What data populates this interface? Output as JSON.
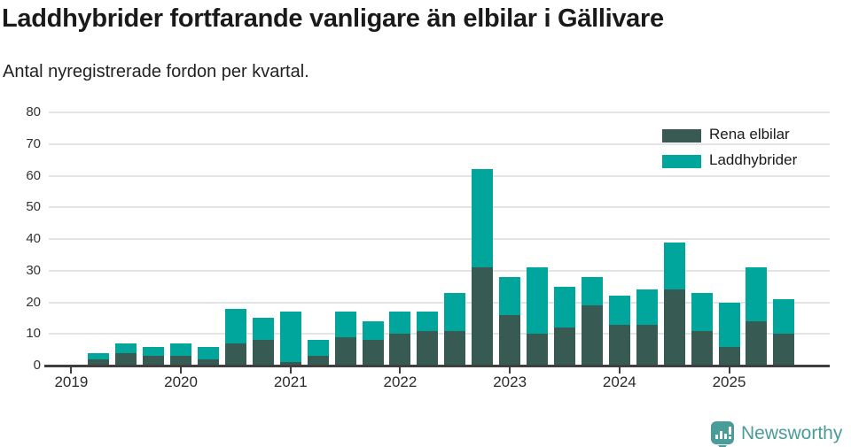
{
  "title": "Laddhybrider fortfarande vanligare än elbilar i Gällivare",
  "subtitle": "Antal nyregistrerade fordon per kvartal.",
  "footer": {
    "brand": "Newsworthy",
    "icon": "bar-chart-speech-bubble-icon"
  },
  "colors": {
    "elbilar": "#375b53",
    "laddhybrider": "#00a59c",
    "brand": "#4a9c99",
    "grid": "#e4e4e4",
    "axis": "#3f3f3f"
  },
  "chart_data": {
    "type": "bar",
    "stacked": true,
    "title": "Laddhybrider fortfarande vanligare än elbilar i Gällivare",
    "subtitle": "Antal nyregistrerade fordon per kvartal.",
    "grid": "horizontal",
    "legend_position": "top-right",
    "ylim": [
      0,
      80
    ],
    "yticks": [
      0,
      10,
      20,
      30,
      40,
      50,
      60,
      70,
      80
    ],
    "x_year_labels": [
      "2019",
      "2020",
      "2021",
      "2022",
      "2023",
      "2024",
      "2025"
    ],
    "categories": [
      "2019 K2",
      "2019 K3",
      "2019 K4",
      "2020 K1",
      "2020 K2",
      "2020 K3",
      "2020 K4",
      "2021 K1",
      "2021 K2",
      "2021 K3",
      "2021 K4",
      "2022 K1",
      "2022 K2",
      "2022 K3",
      "2022 K4",
      "2023 K1",
      "2023 K2",
      "2023 K3",
      "2023 K4",
      "2024 K1",
      "2024 K2",
      "2024 K3",
      "2024 K4",
      "2025 K1",
      "2025 K2",
      "2025 K3"
    ],
    "series": [
      {
        "name": "Rena elbilar",
        "color": "#375b53",
        "values": [
          2,
          4,
          3,
          3,
          2,
          7,
          8,
          1,
          3,
          9,
          8,
          10,
          11,
          11,
          31,
          16,
          10,
          12,
          19,
          13,
          13,
          24,
          11,
          6,
          14,
          10
        ]
      },
      {
        "name": "Laddhybrider",
        "color": "#00a59c",
        "values": [
          2,
          3,
          3,
          4,
          4,
          11,
          7,
          16,
          5,
          8,
          6,
          7,
          6,
          12,
          31,
          12,
          21,
          13,
          9,
          9,
          11,
          15,
          12,
          14,
          17,
          11
        ]
      }
    ]
  }
}
